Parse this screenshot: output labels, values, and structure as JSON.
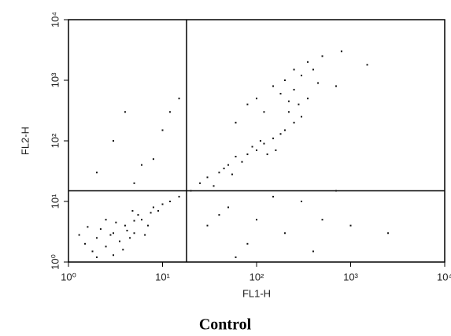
{
  "chart_data": {
    "type": "scatter",
    "title": "Control",
    "x_label": "FL1-H",
    "y_label": "FL2-H",
    "log_x": true,
    "log_y": true,
    "xlim": [
      1,
      10000
    ],
    "ylim": [
      1,
      10000
    ],
    "xticks": [
      {
        "value": 1,
        "label": "10⁰"
      },
      {
        "value": 10,
        "label": "10¹"
      },
      {
        "value": 100,
        "label": "10²"
      },
      {
        "value": 1000,
        "label": "10³"
      },
      {
        "value": 10000,
        "label": "10⁴"
      }
    ],
    "yticks": [
      {
        "value": 1,
        "label": "10⁰"
      },
      {
        "value": 10,
        "label": "10¹"
      },
      {
        "value": 100,
        "label": "10²"
      },
      {
        "value": 1000,
        "label": "10³"
      },
      {
        "value": 10000,
        "label": "10⁴"
      }
    ],
    "quadrant_x": 18,
    "quadrant_y": 15,
    "series": [
      {
        "color": "#111111",
        "x": [
          1.5,
          2,
          2.5,
          3,
          3.5,
          4,
          2.2,
          1.8,
          5,
          6,
          4.5,
          3.2,
          2.8,
          5.5,
          7,
          8,
          1.3,
          2.5,
          3.8,
          6.5,
          4.2,
          3,
          2,
          5,
          7.5,
          9,
          10,
          12,
          1.6,
          4.8,
          15,
          20,
          25,
          30,
          40,
          50,
          60,
          80,
          100,
          120,
          150,
          200,
          250,
          300,
          70,
          90,
          130,
          180,
          35,
          45,
          55,
          110,
          160,
          220,
          280,
          350,
          100,
          150,
          200,
          250,
          300,
          180,
          120,
          400,
          350,
          500,
          250,
          80,
          60,
          450,
          220,
          700,
          1500,
          800,
          5,
          8,
          12,
          3,
          6,
          10,
          15,
          4,
          2,
          50,
          100,
          200,
          500,
          1000,
          300,
          80,
          150,
          40,
          700,
          2500,
          30,
          400,
          60
        ],
        "y": [
          2,
          2.5,
          1.8,
          3,
          2.2,
          4,
          3.5,
          1.5,
          3,
          5,
          2.5,
          4.5,
          2.8,
          6,
          4,
          8,
          2.8,
          5,
          1.6,
          2.8,
          3.3,
          1.3,
          1.2,
          4.8,
          6.5,
          7,
          9,
          10,
          3.8,
          7,
          12,
          15,
          20,
          25,
          30,
          40,
          55,
          60,
          70,
          90,
          110,
          150,
          200,
          250,
          45,
          80,
          60,
          130,
          18,
          35,
          28,
          100,
          70,
          300,
          400,
          500,
          500,
          800,
          1000,
          700,
          1200,
          600,
          300,
          1500,
          2000,
          2500,
          1500,
          400,
          200,
          900,
          450,
          800,
          1800,
          3000,
          20,
          50,
          300,
          100,
          40,
          150,
          500,
          300,
          30,
          8,
          5,
          3,
          5,
          4,
          10,
          2,
          12,
          6,
          15,
          3,
          4,
          1.5,
          1.2
        ]
      }
    ]
  }
}
